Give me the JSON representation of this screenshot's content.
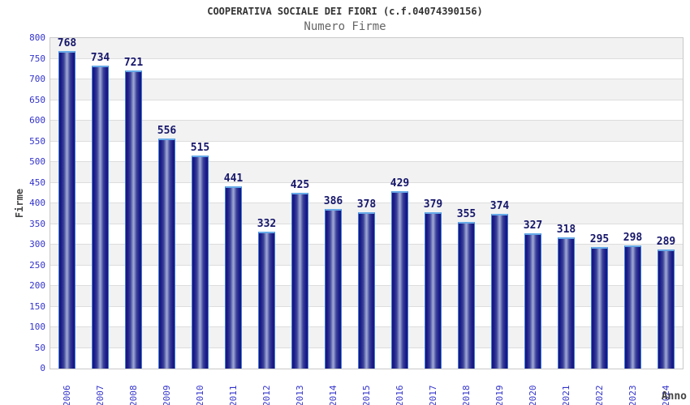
{
  "chart_data": {
    "type": "bar",
    "title": "COOPERATIVA SOCIALE DEI FIORI (c.f.04074390156)",
    "subtitle": "Numero Firme",
    "xlabel": "Anno",
    "ylabel": "Firme",
    "categories": [
      "2006",
      "2007",
      "2008",
      "2009",
      "2010",
      "2011",
      "2012",
      "2013",
      "2014",
      "2015",
      "2016",
      "2017",
      "2018",
      "2019",
      "2020",
      "2021",
      "2022",
      "2023",
      "2024"
    ],
    "values": [
      768,
      734,
      721,
      556,
      515,
      441,
      332,
      425,
      386,
      378,
      429,
      379,
      355,
      374,
      327,
      318,
      295,
      298,
      289
    ],
    "ylim": [
      0,
      800
    ],
    "ytick_step": 50,
    "legend": "none",
    "grid": "horizontal-bands-alternating",
    "colors": {
      "title": "#333333",
      "subtitle": "#666666",
      "axis_tick_label": "#3333cc",
      "value_label": "#16166b",
      "axis_title": "#444444",
      "band_gray": "#f2f2f2",
      "band_white": "#ffffff",
      "gridline": "#dddddd",
      "plot_border": "#c9c9c9",
      "bar_dark": "#15157d",
      "bar_navy": "#1c1c8a",
      "bar_mid": "#9aa2d2",
      "bar_edge": "#3f7fd6",
      "bar_cap": "#67aae8"
    }
  }
}
